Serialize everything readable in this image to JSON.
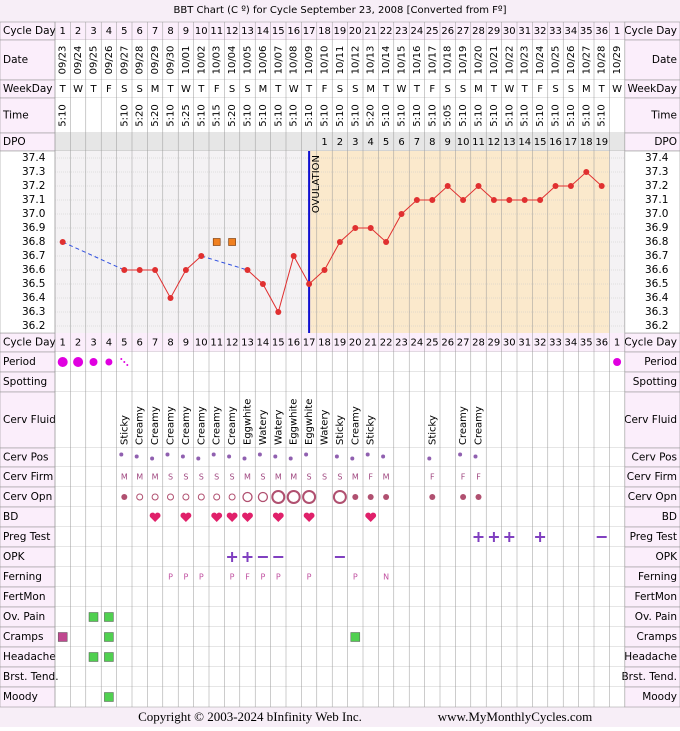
{
  "title": "BBT Chart (C º) for Cycle September 23, 2008  [Converted from Fº]",
  "footer": {
    "copyright": "Copyright © 2003-2024 bInfinity Web Inc.",
    "website": "www.MyMonthlyCycles.com"
  },
  "row_labels": {
    "cycle_day": "Cycle Day",
    "date": "Date",
    "weekday": "WeekDay",
    "time": "Time",
    "dpo": "DPO",
    "period": "Period",
    "spotting": "Spotting",
    "cerv_fluid": "Cerv Fluid",
    "cerv_pos": "Cerv Pos",
    "cerv_firm": "Cerv Firm",
    "cerv_opn": "Cerv Opn",
    "bd": "BD",
    "preg_test": "Preg Test",
    "opk": "OPK",
    "ferning": "Ferning",
    "fertmon": "FertMon",
    "ov_pain": "Ov. Pain",
    "cramps": "Cramps",
    "headache": "Headache",
    "brst_tend": "Brst. Tend.",
    "moody": "Moody"
  },
  "chart_data": {
    "type": "line",
    "categories": [
      1,
      2,
      3,
      4,
      5,
      6,
      7,
      8,
      9,
      10,
      11,
      12,
      13,
      14,
      15,
      16,
      17,
      18,
      19,
      20,
      21,
      22,
      23,
      24,
      25,
      26,
      27,
      28,
      29,
      30,
      31,
      32,
      33,
      34,
      35,
      36,
      1
    ],
    "dates": [
      "09/23",
      "09/24",
      "09/25",
      "09/26",
      "09/27",
      "09/28",
      "09/29",
      "09/30",
      "10/01",
      "10/02",
      "10/03",
      "10/04",
      "10/05",
      "10/06",
      "10/07",
      "10/08",
      "10/09",
      "10/10",
      "10/11",
      "10/12",
      "10/13",
      "10/14",
      "10/15",
      "10/16",
      "10/17",
      "10/18",
      "10/19",
      "10/20",
      "10/21",
      "10/22",
      "10/23",
      "10/24",
      "10/25",
      "10/26",
      "10/27",
      "10/28",
      "10/29"
    ],
    "weekdays": [
      "T",
      "W",
      "T",
      "F",
      "S",
      "S",
      "M",
      "T",
      "W",
      "T",
      "F",
      "S",
      "S",
      "M",
      "T",
      "W",
      "T",
      "F",
      "S",
      "S",
      "M",
      "T",
      "W",
      "T",
      "F",
      "S",
      "S",
      "M",
      "T",
      "W",
      "T",
      "F",
      "S",
      "S",
      "M",
      "T",
      "W"
    ],
    "times": [
      "5:10",
      null,
      null,
      null,
      "5:10",
      "5:20",
      "5:20",
      "5:10",
      "5:25",
      "5:10",
      "5:15",
      "5:20",
      "5:10",
      "5:10",
      "5:10",
      "5:10",
      "5:10",
      "5:10",
      "5:10",
      "5:10",
      "5:20",
      "5:10",
      "5:10",
      "5:10",
      "5:10",
      "5:05",
      "5:10",
      "5:10",
      "5:10",
      "5:10",
      "5:10",
      "5:10",
      "5:10",
      "5:10",
      "5:10",
      "5:10",
      null
    ],
    "dpo": [
      null,
      null,
      null,
      null,
      null,
      null,
      null,
      null,
      null,
      null,
      null,
      null,
      null,
      null,
      null,
      null,
      null,
      1,
      2,
      3,
      4,
      5,
      6,
      7,
      8,
      9,
      10,
      11,
      12,
      13,
      14,
      15,
      16,
      17,
      18,
      19,
      null
    ],
    "series": [
      {
        "color": "#e03030",
        "marker": "circle",
        "gap_line": "dashed",
        "values": [
          36.8,
          null,
          null,
          null,
          36.6,
          36.6,
          36.6,
          36.4,
          36.6,
          36.7,
          null,
          null,
          36.6,
          36.5,
          36.3,
          36.7,
          36.5,
          36.6,
          36.8,
          36.9,
          36.9,
          36.8,
          37.0,
          37.1,
          37.1,
          37.2,
          37.1,
          37.2,
          37.1,
          37.1,
          37.1,
          37.1,
          37.2,
          37.2,
          37.3,
          37.2,
          null
        ]
      },
      {
        "color": "#f08020",
        "marker": "square",
        "values": [
          null,
          null,
          null,
          null,
          null,
          null,
          null,
          null,
          null,
          null,
          36.8,
          36.8,
          null,
          null,
          null,
          null,
          null,
          null,
          null,
          null,
          null,
          null,
          null,
          null,
          null,
          null,
          null,
          null,
          null,
          null,
          null,
          null,
          null,
          null,
          null,
          null,
          null
        ]
      }
    ],
    "ylim": [
      36.15,
      37.45
    ],
    "yticks": [
      37.4,
      37.3,
      37.2,
      37.1,
      {
        "value": 37,
        "label": "37.0"
      },
      36.9,
      36.8,
      36.7,
      36.6,
      36.5,
      36.4,
      36.3,
      36.2
    ],
    "grid": true,
    "ovulation": {
      "label": "OVULATION",
      "cycle_day": 17
    },
    "cerv_fluid": [
      null,
      null,
      null,
      null,
      "Sticky",
      "Creamy",
      "Creamy",
      "Creamy",
      "Creamy",
      "Creamy",
      "Creamy",
      "Creamy",
      "Eggwhite",
      "Watery",
      "Watery",
      "Eggwhite",
      "Eggwhite",
      "Watery",
      "Sticky",
      "Creamy",
      "Sticky",
      null,
      null,
      null,
      "Sticky",
      null,
      "Creamy",
      "Creamy",
      null,
      null,
      null,
      null,
      null,
      null,
      null,
      null,
      null
    ],
    "cerv_firm": [
      null,
      null,
      null,
      null,
      "M",
      "M",
      "M",
      "S",
      "S",
      "S",
      "S",
      "S",
      "M",
      "S",
      "M",
      "M",
      "S",
      "S",
      "S",
      "M",
      "F",
      "M",
      null,
      null,
      "F",
      null,
      "F",
      "F",
      null,
      null,
      null,
      null,
      null,
      null,
      null,
      null,
      null
    ],
    "ferning": [
      null,
      null,
      null,
      null,
      null,
      null,
      null,
      "P",
      "P",
      "P",
      null,
      "P",
      "F",
      "P",
      "P",
      null,
      "P",
      null,
      null,
      "P",
      null,
      "N",
      null,
      null,
      null,
      null,
      null,
      null,
      null,
      null,
      null,
      null,
      null,
      null,
      null,
      null,
      null
    ]
  }
}
